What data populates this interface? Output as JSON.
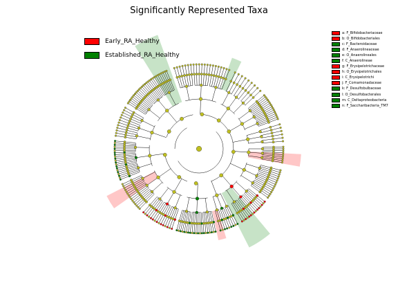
{
  "title": "Significantly Represented Taxa",
  "groups": [
    {
      "label": "Early_RA_Healthy",
      "color": "#ff0000"
    },
    {
      "label": "Established_RA_Healthy",
      "color": "#008000"
    }
  ],
  "node_color": "#bfbf1f",
  "taxa": [
    {
      "label": "a: F_Bifidobacteriaceae",
      "group": 0
    },
    {
      "label": "b: O_Bifidobacteriales",
      "group": 0
    },
    {
      "label": "c: F_Bacteroidaceae",
      "group": 1
    },
    {
      "label": "d: F_Anaerolineaceae",
      "group": 1
    },
    {
      "label": "e: O_Anaerolineales",
      "group": 1
    },
    {
      "label": "f: C_Anaerolineae",
      "group": 1
    },
    {
      "label": "g: F_Erysipelotrichaceae",
      "group": 0
    },
    {
      "label": "h: O_Erysipelotrichales",
      "group": 0
    },
    {
      "label": "i: C_Erysipelotrichi",
      "group": 0
    },
    {
      "label": "j: F_Comamonadaceae",
      "group": 0
    },
    {
      "label": "k: F_Desulfobulbaceae",
      "group": 1
    },
    {
      "label": "l: O_Desulfobacterales",
      "group": 1
    },
    {
      "label": "m: C_Deltaproteobacteria",
      "group": 1
    },
    {
      "label": "n: F_Saccharibacteria_TM7",
      "group": 1
    }
  ]
}
